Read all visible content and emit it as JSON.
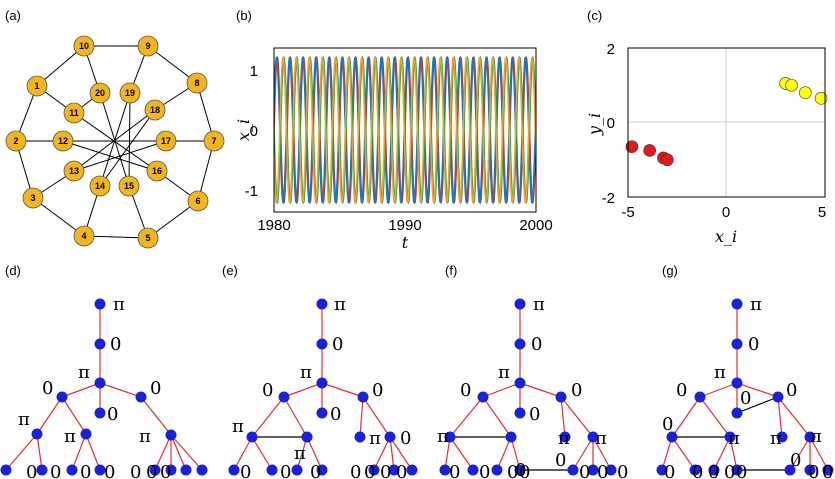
{
  "panels": {
    "a": {
      "label": "(a)"
    },
    "b": {
      "label": "(b)"
    },
    "c": {
      "label": "(c)"
    },
    "d": {
      "label": "(d)"
    },
    "e": {
      "label": "(e)"
    },
    "f": {
      "label": "(f)"
    },
    "g": {
      "label": "(g)"
    }
  },
  "graph_a": {
    "nodes": [
      "1",
      "2",
      "3",
      "4",
      "5",
      "6",
      "7",
      "8",
      "9",
      "10",
      "11",
      "12",
      "13",
      "14",
      "15",
      "16",
      "17",
      "18",
      "19",
      "20"
    ],
    "node_color": "#f2b51c"
  },
  "chart_data": [
    {
      "type": "line",
      "panel": "b",
      "xlabel": "t",
      "ylabel": "x_i",
      "xlim": [
        1980,
        2000
      ],
      "ylim": [
        -1.3,
        1.3
      ],
      "xticks": [
        "1980",
        "1990",
        "2000"
      ],
      "yticks": [
        "1",
        "0",
        "-1"
      ],
      "cycles_in_window": 20,
      "series": [
        {
          "color": "#c0392b",
          "phase": 0
        },
        {
          "color": "#1f77b4",
          "phase": 0.35
        },
        {
          "color": "#2ca02c",
          "phase": 3.14
        },
        {
          "color": "#e8a23c",
          "phase": 3.5
        }
      ]
    },
    {
      "type": "scatter",
      "panel": "c",
      "xlabel": "x_i",
      "ylabel": "y_i",
      "xlim": [
        -5,
        5
      ],
      "ylim": [
        -2,
        2
      ],
      "xticks": [
        "-5",
        "0",
        "5"
      ],
      "yticks": [
        "2",
        "0",
        "-2"
      ],
      "grid": true,
      "series": [
        {
          "color": "#e31a1c",
          "points": [
            [
              -4.8,
              -0.65
            ],
            [
              -3.9,
              -0.75
            ],
            [
              -3.2,
              -0.95
            ],
            [
              -3.0,
              -1.0
            ]
          ]
        },
        {
          "color": "#ffff00",
          "points": [
            [
              3.0,
              1.05
            ],
            [
              3.3,
              1.0
            ],
            [
              4.0,
              0.8
            ],
            [
              4.8,
              0.65
            ]
          ]
        }
      ]
    }
  ],
  "trees": {
    "d": {
      "labels": [
        "π",
        "0",
        "π",
        "0",
        "0",
        "0",
        "π",
        "π",
        "π",
        "0",
        "0",
        "0",
        "0",
        "0",
        "0",
        "0"
      ]
    },
    "e": {
      "labels": [
        "π",
        "0",
        "π",
        "0",
        "0",
        "0",
        "π",
        "π",
        "π",
        "0",
        "0",
        "0",
        "0",
        "0",
        "0",
        "0",
        "0"
      ]
    },
    "f": {
      "labels": [
        "π",
        "0",
        "π",
        "0",
        "0",
        "0",
        "π",
        "π",
        "π",
        "0",
        "0",
        "0",
        "0",
        "0",
        "0",
        "0",
        "0",
        "0"
      ]
    },
    "g": {
      "labels": [
        "π",
        "0",
        "π",
        "0",
        "0",
        "0",
        "0",
        "π",
        "π",
        "π",
        "0",
        "0",
        "0",
        "0",
        "0",
        "0",
        "0",
        "0"
      ]
    }
  }
}
